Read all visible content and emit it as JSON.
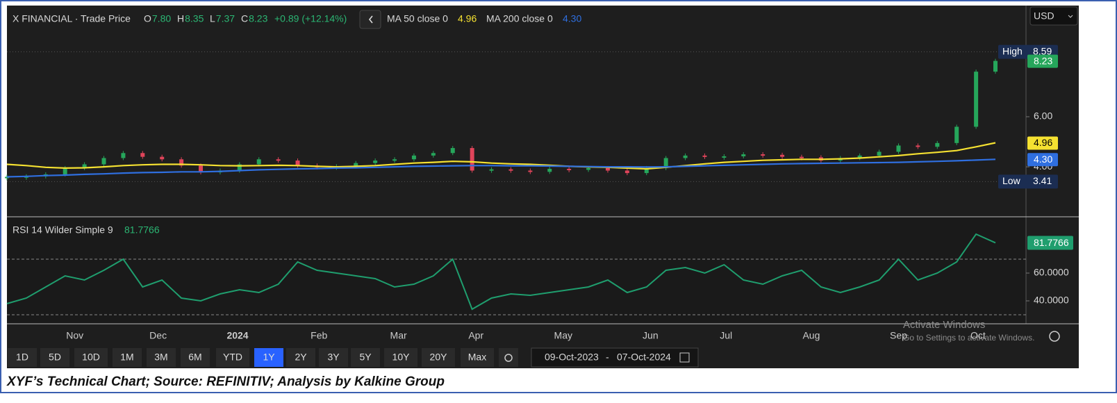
{
  "header": {
    "symbol": "X FINANCIAL · Trade Price",
    "ohlc": [
      {
        "label": "O",
        "value": "7.80"
      },
      {
        "label": "H",
        "value": "8.35"
      },
      {
        "label": "L",
        "value": "7.37"
      },
      {
        "label": "C",
        "value": "8.23"
      }
    ],
    "change": "+0.89 (+12.14%)"
  },
  "currency": "USD",
  "chart_data": [
    {
      "type": "candlestick",
      "values": [
        3.6,
        3.62,
        3.7,
        3.95,
        4.1,
        4.35,
        4.55,
        4.4,
        4.3,
        4.05,
        3.78,
        3.85,
        4.1,
        4.3,
        4.25,
        4.05,
        3.98,
        4.02,
        4.15,
        4.25,
        4.3,
        4.45,
        4.55,
        4.75,
        3.85,
        3.9,
        3.85,
        3.8,
        3.92,
        3.88,
        3.95,
        3.85,
        3.75,
        3.95,
        4.35,
        4.45,
        4.4,
        4.42,
        4.5,
        4.48,
        4.4,
        4.38,
        4.25,
        4.35,
        4.45,
        4.6,
        4.85,
        4.8,
        4.95,
        5.6,
        7.8,
        8.23
      ],
      "up_color": "#26a65b",
      "down_color": "#e0445a",
      "series": [
        {
          "name": "MA 50 close 0",
          "color": "#f5e131",
          "last_label": "4.96",
          "values": [
            4.1,
            4.05,
            3.98,
            3.95,
            3.96,
            4.0,
            4.05,
            4.08,
            4.1,
            4.1,
            4.08,
            4.05,
            4.04,
            4.05,
            4.06,
            4.05,
            4.02,
            4.0,
            4.02,
            4.05,
            4.1,
            4.15,
            4.18,
            4.22,
            4.2,
            4.15,
            4.12,
            4.1,
            4.06,
            4.02,
            4.0,
            3.98,
            3.95,
            3.92,
            3.98,
            4.05,
            4.12,
            4.18,
            4.22,
            4.26,
            4.28,
            4.3,
            4.3,
            4.32,
            4.35,
            4.4,
            4.45,
            4.52,
            4.58,
            4.65,
            4.8,
            4.96
          ]
        },
        {
          "name": "MA 200 close 0",
          "color": "#2f6fe0",
          "last_label": "4.30",
          "values": [
            3.6,
            3.62,
            3.65,
            3.67,
            3.7,
            3.72,
            3.75,
            3.77,
            3.78,
            3.8,
            3.8,
            3.82,
            3.85,
            3.88,
            3.9,
            3.92,
            3.93,
            3.95,
            3.96,
            3.98,
            4.0,
            4.02,
            4.03,
            4.04,
            4.05,
            4.05,
            4.04,
            4.04,
            4.03,
            4.02,
            4.01,
            4.0,
            4.0,
            3.99,
            4.0,
            4.02,
            4.04,
            4.06,
            4.08,
            4.1,
            4.12,
            4.13,
            4.14,
            4.15,
            4.16,
            4.17,
            4.18,
            4.2,
            4.22,
            4.24,
            4.27,
            4.3
          ]
        }
      ],
      "badges": [
        {
          "label": "High",
          "value": 8.59
        },
        {
          "label": "Low",
          "value": 3.41
        }
      ],
      "ylim": [
        2.06,
        10.44
      ],
      "yticks": [
        {
          "value": 4,
          "label": "4.00"
        },
        {
          "value": 6,
          "label": "6.00"
        }
      ],
      "xlim": [
        0,
        51
      ],
      "xticks": [
        {
          "value": 3.5,
          "label": "Nov"
        },
        {
          "value": 7.8,
          "label": "Dec"
        },
        {
          "value": 11.9,
          "label": "2024"
        },
        {
          "value": 16.1,
          "label": "Feb"
        },
        {
          "value": 20.2,
          "label": "Mar"
        },
        {
          "value": 24.2,
          "label": "Apr"
        },
        {
          "value": 28.7,
          "label": "May"
        },
        {
          "value": 33.2,
          "label": "Jun"
        },
        {
          "value": 37.1,
          "label": "Jul"
        },
        {
          "value": 41.5,
          "label": "Aug"
        },
        {
          "value": 46.0,
          "label": "Sep"
        },
        {
          "value": 50.1,
          "label": "Oct"
        }
      ]
    },
    {
      "type": "line",
      "title": "RSI 14 Wilder Simple 9",
      "color": "#1f9e6e",
      "values": [
        38,
        42,
        50,
        58,
        55,
        62,
        70,
        50,
        55,
        42,
        40,
        45,
        48,
        46,
        52,
        68,
        62,
        60,
        58,
        56,
        50,
        52,
        58,
        70,
        34,
        42,
        45,
        44,
        46,
        48,
        50,
        55,
        46,
        50,
        62,
        64,
        60,
        66,
        55,
        52,
        58,
        62,
        50,
        46,
        50,
        55,
        70,
        55,
        60,
        68,
        88,
        81.7766
      ],
      "levels": [
        70,
        30
      ],
      "ylim": [
        23.5,
        100
      ],
      "yticks": [
        {
          "value": 60,
          "label": "60.0000"
        },
        {
          "value": 40,
          "label": "40.0000"
        }
      ]
    }
  ],
  "ranges": [
    "1D",
    "5D",
    "10D",
    "1M",
    "3M",
    "6M",
    "YTD",
    "1Y",
    "2Y",
    "3Y",
    "5Y",
    "10Y",
    "20Y",
    "Max"
  ],
  "active_range": "1Y",
  "date_from": "09-Oct-2023",
  "date_to": "07-Oct-2024",
  "watermark": [
    "Activate Windows",
    "Go to Settings to activate Windows."
  ],
  "caption": "XYF’s Technical Chart; Source: REFINITIV; Analysis by Kalkine Group"
}
